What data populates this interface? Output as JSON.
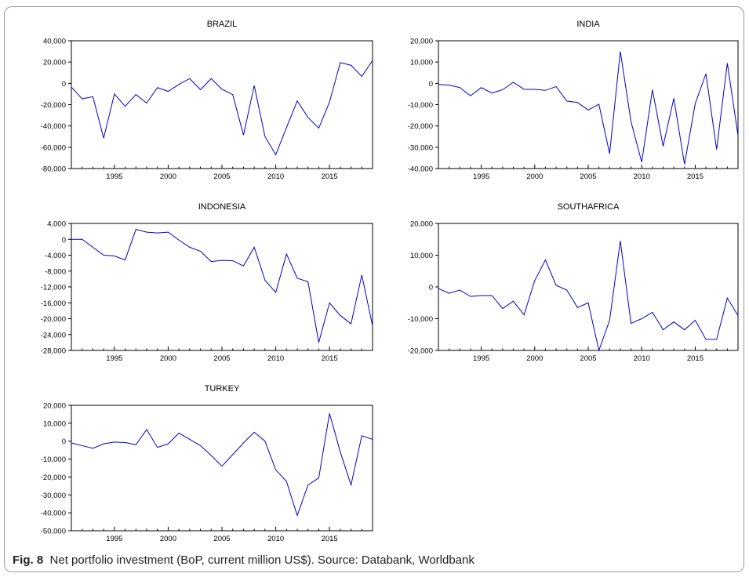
{
  "chart_data": [
    {
      "type": "line",
      "title": "BRAZIL",
      "x": [
        1991,
        1992,
        1993,
        1994,
        1995,
        1996,
        1997,
        1998,
        1999,
        2000,
        2001,
        2002,
        2003,
        2004,
        2005,
        2006,
        2007,
        2008,
        2009,
        2010,
        2011,
        2012,
        2013,
        2014,
        2015,
        2016,
        2017,
        2018,
        2019
      ],
      "series": [
        {
          "values": [
            -3500,
            -14500,
            -12500,
            -51500,
            -10000,
            -21500,
            -10500,
            -18500,
            -4000,
            -7500,
            -1000,
            4500,
            -6000,
            4500,
            -5500,
            -10500,
            -48500,
            -2000,
            -50000,
            -67000,
            -41500,
            -16500,
            -32000,
            -42000,
            -17500,
            19500,
            17000,
            6500,
            21500
          ]
        }
      ],
      "xticks": [
        "1995",
        "2000",
        "2005",
        "2010",
        "2015"
      ],
      "yticks": [
        "40,000",
        "20,000",
        "0",
        "-20,000",
        "-40,000",
        "-60,000",
        "-80,000"
      ],
      "ylim": [
        -80000,
        40000
      ],
      "color": "#0000cc"
    },
    {
      "type": "line",
      "title": "INDIA",
      "x": [
        1991,
        1992,
        1993,
        1994,
        1995,
        1996,
        1997,
        1998,
        1999,
        2000,
        2001,
        2002,
        2003,
        2004,
        2005,
        2006,
        2007,
        2008,
        2009,
        2010,
        2011,
        2012,
        2013,
        2014,
        2015,
        2016,
        2017,
        2018,
        2019
      ],
      "series": [
        {
          "values": [
            -500,
            -800,
            -2000,
            -5800,
            -2000,
            -4500,
            -3000,
            500,
            -2800,
            -2800,
            -3300,
            -1500,
            -8300,
            -9000,
            -12500,
            -9800,
            -33000,
            15000,
            -18000,
            -37000,
            -3000,
            -29500,
            -7000,
            -38000,
            -9500,
            4500,
            -31000,
            9500,
            -24500
          ]
        }
      ],
      "xticks": [
        "1995",
        "2000",
        "2005",
        "2010",
        "2015"
      ],
      "yticks": [
        "20,000",
        "10,000",
        "0",
        "-10,000",
        "-20,000",
        "-30,000",
        "-40,000"
      ],
      "ylim": [
        -40000,
        20000
      ],
      "color": "#0000cc"
    },
    {
      "type": "line",
      "title": "INDONESIA",
      "x": [
        1991,
        1992,
        1993,
        1994,
        1995,
        1996,
        1997,
        1998,
        1999,
        2000,
        2001,
        2002,
        2003,
        2004,
        2005,
        2006,
        2007,
        2008,
        2009,
        2010,
        2011,
        2012,
        2013,
        2014,
        2015,
        2016,
        2017,
        2018,
        2019
      ],
      "series": [
        {
          "values": [
            0,
            0,
            -2000,
            -4000,
            -4200,
            -5200,
            2500,
            1800,
            1600,
            1800,
            -200,
            -2000,
            -3000,
            -5600,
            -5300,
            -5400,
            -6700,
            -2000,
            -10300,
            -13400,
            -3700,
            -9800,
            -10700,
            -26000,
            -16000,
            -19200,
            -21300,
            -9000,
            -21800
          ]
        }
      ],
      "xticks": [
        "1995",
        "2000",
        "2005",
        "2010",
        "2015"
      ],
      "yticks": [
        "4,000",
        "0",
        "-4,000",
        "-8,000",
        "-12,000",
        "-16,000",
        "-20,000",
        "-24,000",
        "-28,000"
      ],
      "ylim": [
        -28000,
        4000
      ],
      "color": "#0000cc"
    },
    {
      "type": "line",
      "title": "SOUTHAFRICA",
      "x": [
        1991,
        1992,
        1993,
        1994,
        1995,
        1996,
        1997,
        1998,
        1999,
        2000,
        2001,
        2002,
        2003,
        2004,
        2005,
        2006,
        2007,
        2008,
        2009,
        2010,
        2011,
        2012,
        2013,
        2014,
        2015,
        2016,
        2017,
        2018,
        2019
      ],
      "series": [
        {
          "values": [
            -500,
            -2000,
            -1000,
            -3000,
            -2700,
            -2700,
            -6800,
            -4500,
            -8800,
            2000,
            8500,
            500,
            -1000,
            -6500,
            -5000,
            -20000,
            -10500,
            14500,
            -11500,
            -10000,
            -8000,
            -13500,
            -11000,
            -13500,
            -10500,
            -16500,
            -16500,
            -3500,
            -9000
          ]
        }
      ],
      "xticks": [
        "1995",
        "2000",
        "2005",
        "2010",
        "2015"
      ],
      "yticks": [
        "20,000",
        "10,000",
        "0",
        "-10,000",
        "-20,000"
      ],
      "ylim": [
        -20000,
        20000
      ],
      "color": "#0000cc"
    },
    {
      "type": "line",
      "title": "TURKEY",
      "x": [
        1991,
        1992,
        1993,
        1994,
        1995,
        1996,
        1997,
        1998,
        1999,
        2000,
        2001,
        2002,
        2003,
        2004,
        2005,
        2006,
        2007,
        2008,
        2009,
        2010,
        2011,
        2012,
        2013,
        2014,
        2015,
        2016,
        2017,
        2018,
        2019
      ],
      "series": [
        {
          "values": [
            -1000,
            -2500,
            -4000,
            -1500,
            -500,
            -800,
            -2000,
            6500,
            -3500,
            -1500,
            4500,
            1000,
            -2500,
            -8000,
            -14000,
            -7500,
            -1000,
            5000,
            0,
            -16000,
            -22500,
            -41500,
            -24500,
            -20500,
            15500,
            -6000,
            -24500,
            3000,
            1000
          ]
        }
      ],
      "xticks": [
        "1995",
        "2000",
        "2005",
        "2010",
        "2015"
      ],
      "yticks": [
        "20,000",
        "10,000",
        "0",
        "-10,000",
        "-20,000",
        "-30,000",
        "-40,000",
        "-50,000"
      ],
      "ylim": [
        -50000,
        20000
      ],
      "color": "#0000cc"
    }
  ],
  "caption": {
    "label": "Fig. 8",
    "text": "Net portfolio investment (BoP, current million US$). Source: Databank, Worldbank"
  }
}
